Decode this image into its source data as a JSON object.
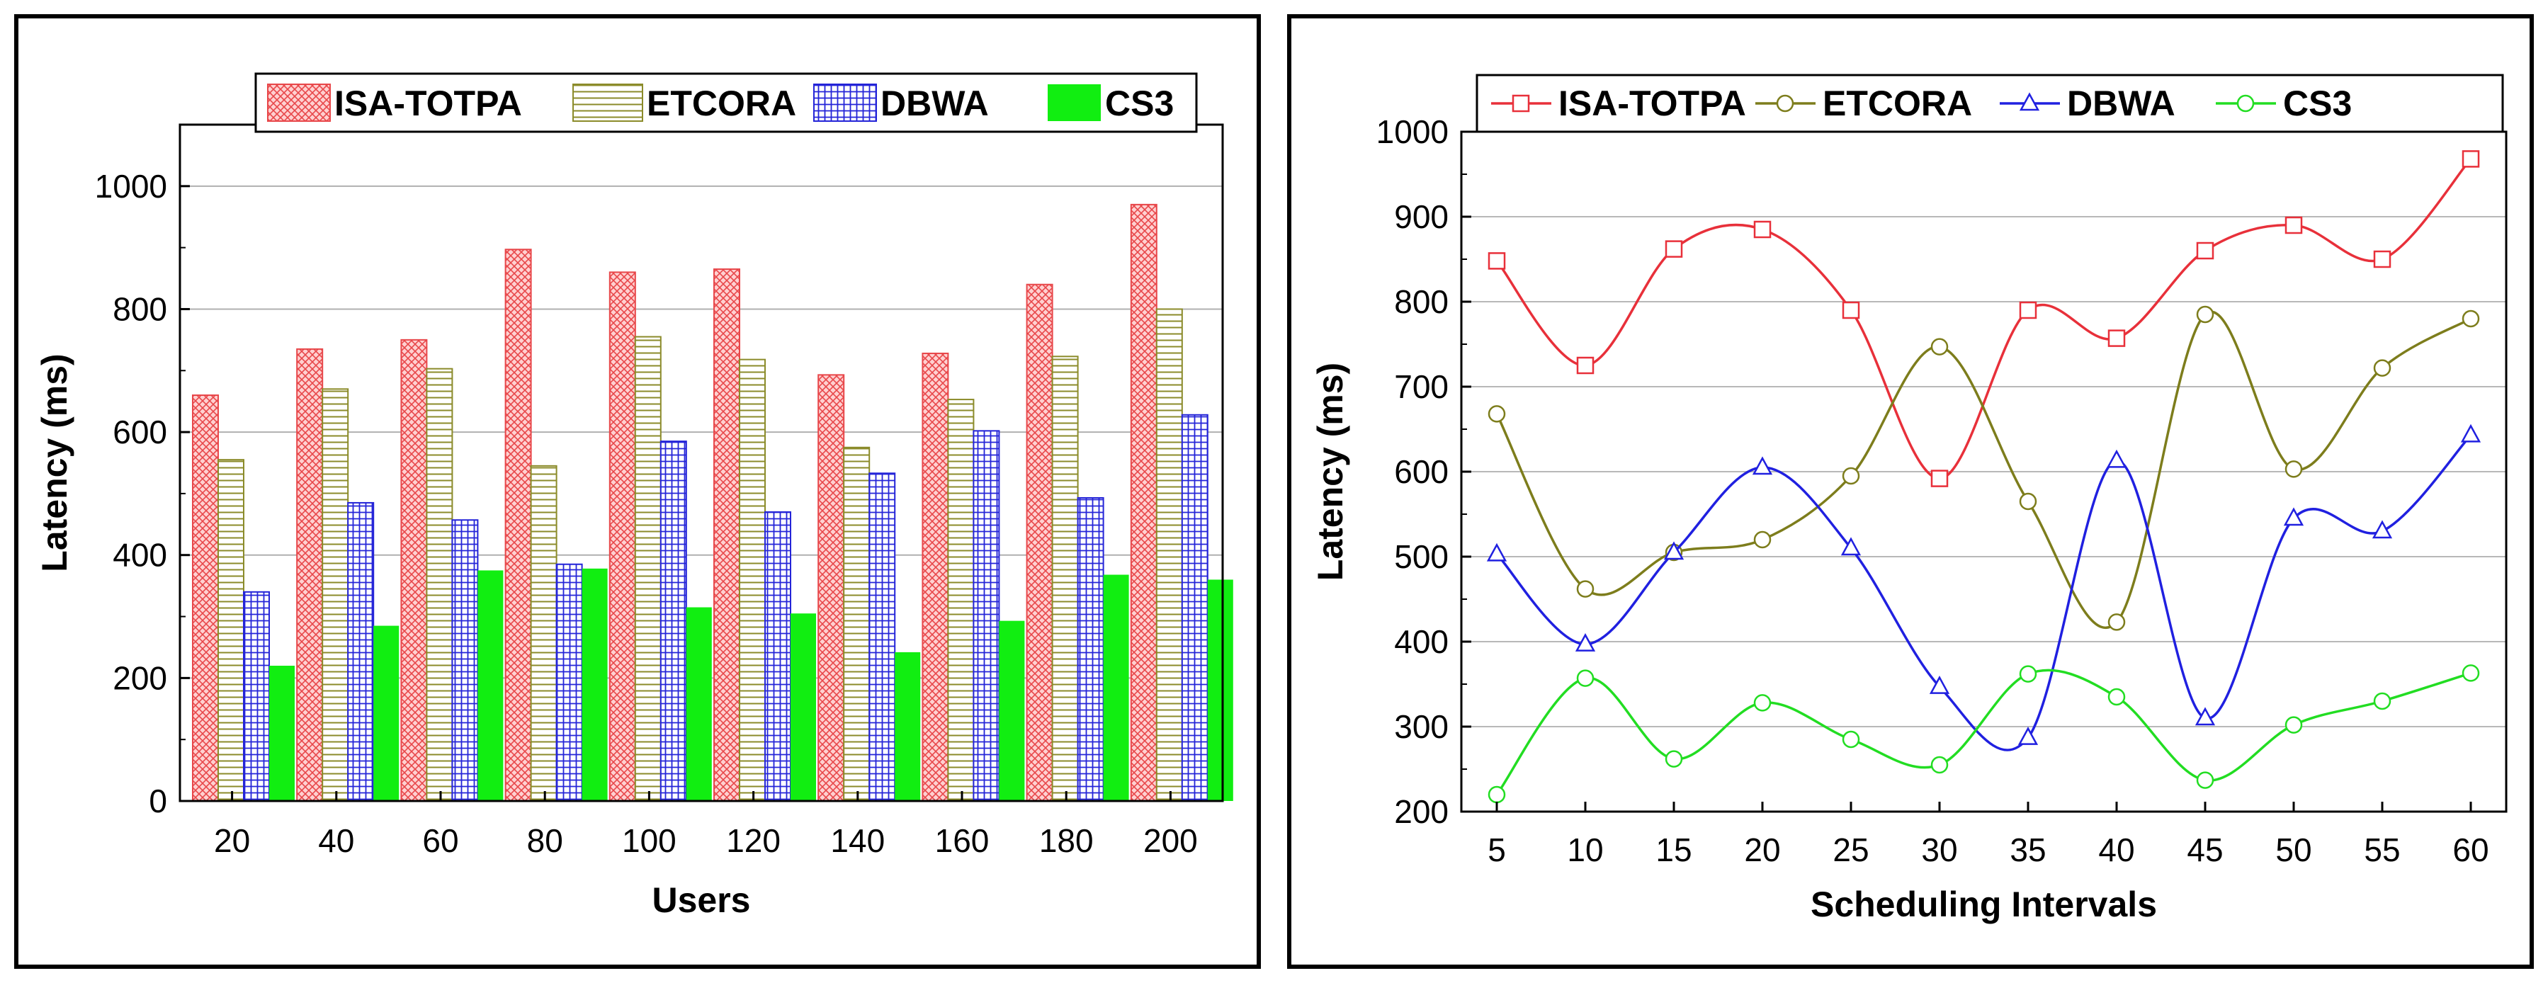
{
  "chart_data": [
    {
      "type": "bar",
      "title": "",
      "xlabel": "Users",
      "ylabel": "Latency (ms)",
      "ylim": [
        0,
        1100
      ],
      "yticks": [
        0,
        200,
        400,
        600,
        800,
        1000
      ],
      "categories": [
        "20",
        "40",
        "60",
        "80",
        "100",
        "120",
        "140",
        "160",
        "180",
        "200"
      ],
      "grid": true,
      "legend_position": "top",
      "series": [
        {
          "name": "ISA-TOTPA",
          "color": "#e8474a",
          "pattern": "crosshatch",
          "values": [
            660,
            735,
            750,
            897,
            860,
            865,
            693,
            728,
            840,
            970
          ]
        },
        {
          "name": "ETCORA",
          "color": "#8b8b2a",
          "pattern": "horizontal",
          "values": [
            555,
            670,
            703,
            545,
            755,
            718,
            575,
            653,
            723,
            800
          ]
        },
        {
          "name": "DBWA",
          "color": "#2424d8",
          "pattern": "grid",
          "values": [
            340,
            485,
            457,
            385,
            585,
            470,
            533,
            602,
            493,
            628
          ]
        },
        {
          "name": "CS3",
          "color": "#11ee11",
          "pattern": "solid",
          "values": [
            220,
            285,
            375,
            378,
            315,
            305,
            242,
            293,
            368,
            360
          ]
        }
      ]
    },
    {
      "type": "line",
      "title": "",
      "xlabel": "Scheduling Intervals",
      "ylabel": "Latency (ms)",
      "xlim": [
        3,
        62
      ],
      "ylim": [
        200,
        1000
      ],
      "yticks": [
        200,
        300,
        400,
        500,
        600,
        700,
        800,
        900,
        1000
      ],
      "x": [
        5,
        10,
        15,
        20,
        25,
        30,
        35,
        40,
        45,
        50,
        55,
        60
      ],
      "grid": true,
      "legend_position": "top",
      "series": [
        {
          "name": "ISA-TOTPA",
          "color": "#e8303a",
          "marker": "square",
          "values": [
            848,
            725,
            862,
            885,
            790,
            592,
            790,
            757,
            860,
            890,
            850,
            968
          ]
        },
        {
          "name": "ETCORA",
          "color": "#7d7d1c",
          "marker": "circle",
          "values": [
            668,
            462,
            505,
            520,
            595,
            747,
            565,
            423,
            785,
            603,
            722,
            780
          ]
        },
        {
          "name": "DBWA",
          "color": "#2020e0",
          "marker": "triangle",
          "values": [
            503,
            397,
            505,
            605,
            510,
            347,
            287,
            613,
            310,
            545,
            530,
            643
          ]
        },
        {
          "name": "CS3",
          "color": "#22dd22",
          "marker": "circle",
          "values": [
            220,
            357,
            262,
            328,
            285,
            255,
            362,
            335,
            237,
            302,
            330,
            363
          ]
        }
      ]
    }
  ]
}
